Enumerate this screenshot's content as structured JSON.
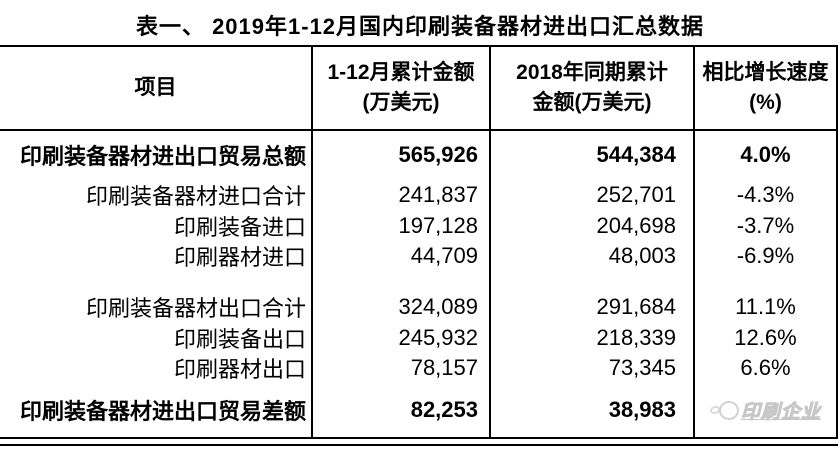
{
  "title": "表一、 2019年1-12月国内印刷装备器材进出口汇总数据",
  "table": {
    "headers": [
      {
        "line1": "项目",
        "line2": ""
      },
      {
        "line1": "1-12月累计金额",
        "line2": "(万美元)"
      },
      {
        "line1": "2018年同期累计",
        "line2": "金额(万美元)"
      },
      {
        "line1": "相比增长速度",
        "line2": "(%)"
      }
    ],
    "unit_note": "万美元",
    "rows": [
      {
        "item": "印刷装备器材进出口贸易总额",
        "amount_2019": "565,926",
        "amount_2018": "544,384",
        "growth": "4.0%"
      },
      {
        "item": "印刷装备器材进口合计",
        "amount_2019": "241,837",
        "amount_2018": "252,701",
        "growth": "-4.3%"
      },
      {
        "item": "印刷装备进口",
        "amount_2019": "197,128",
        "amount_2018": "204,698",
        "growth": "-3.7%"
      },
      {
        "item": "印刷器材进口",
        "amount_2019": "44,709",
        "amount_2018": "48,003",
        "growth": "-6.9%"
      },
      {
        "item": "印刷装备器材出口合计",
        "amount_2019": "324,089",
        "amount_2018": "291,684",
        "growth": "11.1%"
      },
      {
        "item": "印刷装备出口",
        "amount_2019": "245,932",
        "amount_2018": "218,339",
        "growth": "12.6%"
      },
      {
        "item": "印刷器材出口",
        "amount_2019": "78,157",
        "amount_2018": "73,345",
        "growth": "6.6%"
      },
      {
        "item": "印刷装备器材进出口贸易差额",
        "amount_2019": "82,253",
        "amount_2018": "38,983",
        "growth": ""
      }
    ]
  },
  "watermark": {
    "text": "印刷企业",
    "icon": "round-mascot-logo"
  }
}
